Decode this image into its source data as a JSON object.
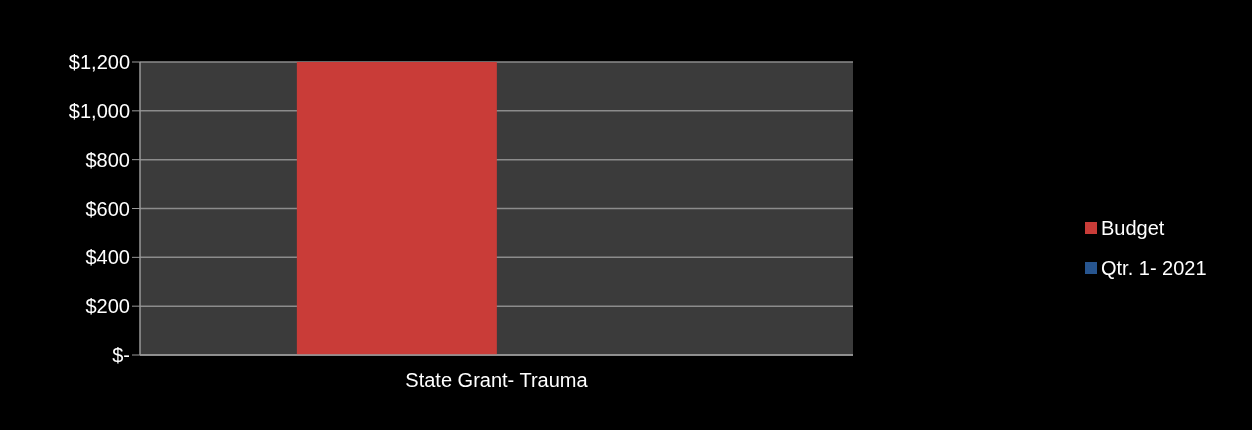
{
  "chart_data": {
    "type": "bar",
    "categories": [
      "State Grant- Trauma"
    ],
    "series": [
      {
        "name": "Budget",
        "color": "#c93c38",
        "values": [
          1200
        ]
      },
      {
        "name": "Qtr. 1- 2021",
        "color": "#27558f",
        "values": [
          0
        ]
      }
    ],
    "ylim": [
      0,
      1200
    ],
    "yticks": [
      {
        "value": 0,
        "label": "$-"
      },
      {
        "value": 200,
        "label": "$200"
      },
      {
        "value": 400,
        "label": "$400"
      },
      {
        "value": 600,
        "label": "$600"
      },
      {
        "value": 800,
        "label": "$800"
      },
      {
        "value": 1000,
        "label": "$1,000"
      },
      {
        "value": 1200,
        "label": "$1,200"
      }
    ],
    "grid": "y",
    "legend": "right"
  }
}
